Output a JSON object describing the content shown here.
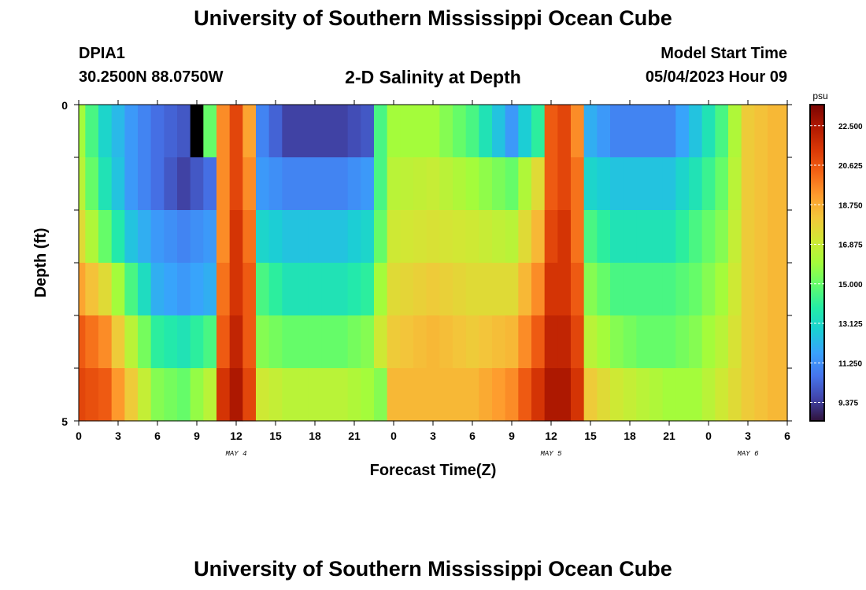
{
  "header": {
    "title": "University of Southern Mississippi Ocean Cube",
    "station": "DPIA1",
    "coords": "30.2500N  88.0750W",
    "subtitle": "2-D Salinity at Depth",
    "model_start_label": "Model Start Time",
    "model_start_value": "05/04/2023 Hour 09"
  },
  "footer": {
    "title": "University of Southern Mississippi Ocean Cube"
  },
  "chart_data": {
    "type": "heatmap",
    "xlabel": "Forecast Time(Z)",
    "ylabel": "Depth (ft)",
    "x_tick_labels": [
      "0",
      "3",
      "6",
      "9",
      "12",
      "15",
      "18",
      "21",
      "0",
      "3",
      "6",
      "9",
      "12",
      "15",
      "18",
      "21",
      "0",
      "3",
      "6"
    ],
    "x_range_hours": [
      0,
      54
    ],
    "day_labels": [
      {
        "text": "MAY 4",
        "hour": 12
      },
      {
        "text": "MAY 5",
        "hour": 36
      },
      {
        "text": "MAY 6",
        "hour": 51
      }
    ],
    "y_tick_labels": [
      "0",
      "5"
    ],
    "ylim": [
      0,
      5
    ],
    "depth_levels": [
      0,
      1,
      2,
      3,
      4,
      5
    ],
    "value_range": [
      8.5,
      23.5
    ],
    "colorbar": {
      "unit": "psu",
      "tick_labels": [
        "22.500",
        "20.625",
        "18.750",
        "16.875",
        "15.000",
        "13.125",
        "11.250",
        "9.375"
      ],
      "tick_values": [
        22.5,
        20.625,
        18.75,
        16.875,
        15.0,
        13.125,
        11.25,
        9.375
      ],
      "colors": [
        "#30123b",
        "#4145ab",
        "#4675ed",
        "#39a2fc",
        "#1bcfd4",
        "#24eca6",
        "#61fc6c",
        "#a4fc3b",
        "#d1e834",
        "#f3c63a",
        "#fe9b2d",
        "#f36315",
        "#d93806",
        "#b11901",
        "#7a0403"
      ]
    },
    "keyframes_hours": [
      0,
      2,
      4,
      6,
      8,
      10,
      11,
      12,
      13,
      14,
      16,
      18,
      20,
      22,
      23,
      24,
      27,
      30,
      33,
      35,
      36,
      37,
      38,
      39,
      41,
      43,
      45,
      47,
      49,
      51,
      53,
      54
    ],
    "salinity_by_level": [
      [
        16.0,
        13.0,
        11.5,
        10.5,
        10.0,
        15.0,
        19.5,
        21.0,
        19.0,
        11.0,
        9.5,
        9.5,
        9.5,
        10.0,
        14.5,
        16.0,
        16.0,
        14.5,
        11.5,
        14.0,
        20.5,
        21.0,
        19.5,
        12.0,
        11.0,
        11.0,
        11.0,
        12.5,
        14.5,
        18.0,
        18.5,
        18.5
      ],
      [
        16.5,
        13.5,
        11.5,
        10.5,
        9.5,
        10.5,
        19.5,
        21.0,
        19.5,
        11.5,
        11.0,
        11.0,
        11.0,
        11.5,
        14.5,
        16.5,
        16.8,
        16.0,
        15.0,
        17.5,
        20.5,
        21.0,
        20.0,
        13.0,
        12.5,
        12.5,
        12.5,
        13.5,
        15.0,
        18.0,
        18.5,
        18.5
      ],
      [
        17.5,
        15.0,
        12.5,
        11.5,
        11.0,
        11.5,
        19.5,
        21.5,
        20.0,
        13.0,
        12.5,
        12.5,
        12.5,
        13.0,
        15.0,
        17.0,
        17.3,
        17.0,
        16.5,
        18.5,
        21.0,
        21.5,
        20.0,
        14.5,
        13.5,
        13.5,
        13.5,
        14.5,
        15.5,
        18.0,
        18.5,
        18.5
      ],
      [
        19.0,
        17.5,
        14.5,
        12.0,
        11.5,
        12.0,
        20.0,
        21.5,
        20.5,
        14.5,
        13.5,
        13.5,
        13.5,
        14.0,
        16.0,
        17.5,
        18.0,
        17.5,
        17.5,
        19.5,
        21.5,
        21.5,
        20.5,
        15.5,
        14.5,
        14.5,
        14.5,
        15.0,
        16.0,
        18.0,
        18.5,
        18.5
      ],
      [
        20.5,
        19.5,
        16.5,
        14.0,
        13.5,
        14.5,
        20.5,
        22.0,
        20.5,
        15.5,
        15.0,
        15.0,
        15.0,
        15.5,
        17.0,
        18.0,
        18.5,
        18.0,
        18.5,
        20.5,
        22.0,
        22.0,
        21.0,
        16.5,
        15.5,
        15.0,
        15.0,
        15.5,
        16.5,
        18.0,
        18.5,
        18.5
      ],
      [
        21.0,
        20.5,
        18.0,
        15.5,
        15.0,
        16.5,
        21.5,
        22.5,
        21.0,
        17.0,
        16.5,
        16.5,
        16.5,
        16.0,
        15.5,
        18.5,
        18.5,
        18.5,
        19.5,
        21.5,
        22.5,
        22.5,
        21.5,
        18.0,
        17.0,
        16.5,
        16.0,
        16.0,
        17.0,
        18.0,
        18.5,
        18.5
      ]
    ],
    "missing_cells": [
      {
        "hour": 9,
        "level": 0
      }
    ]
  }
}
